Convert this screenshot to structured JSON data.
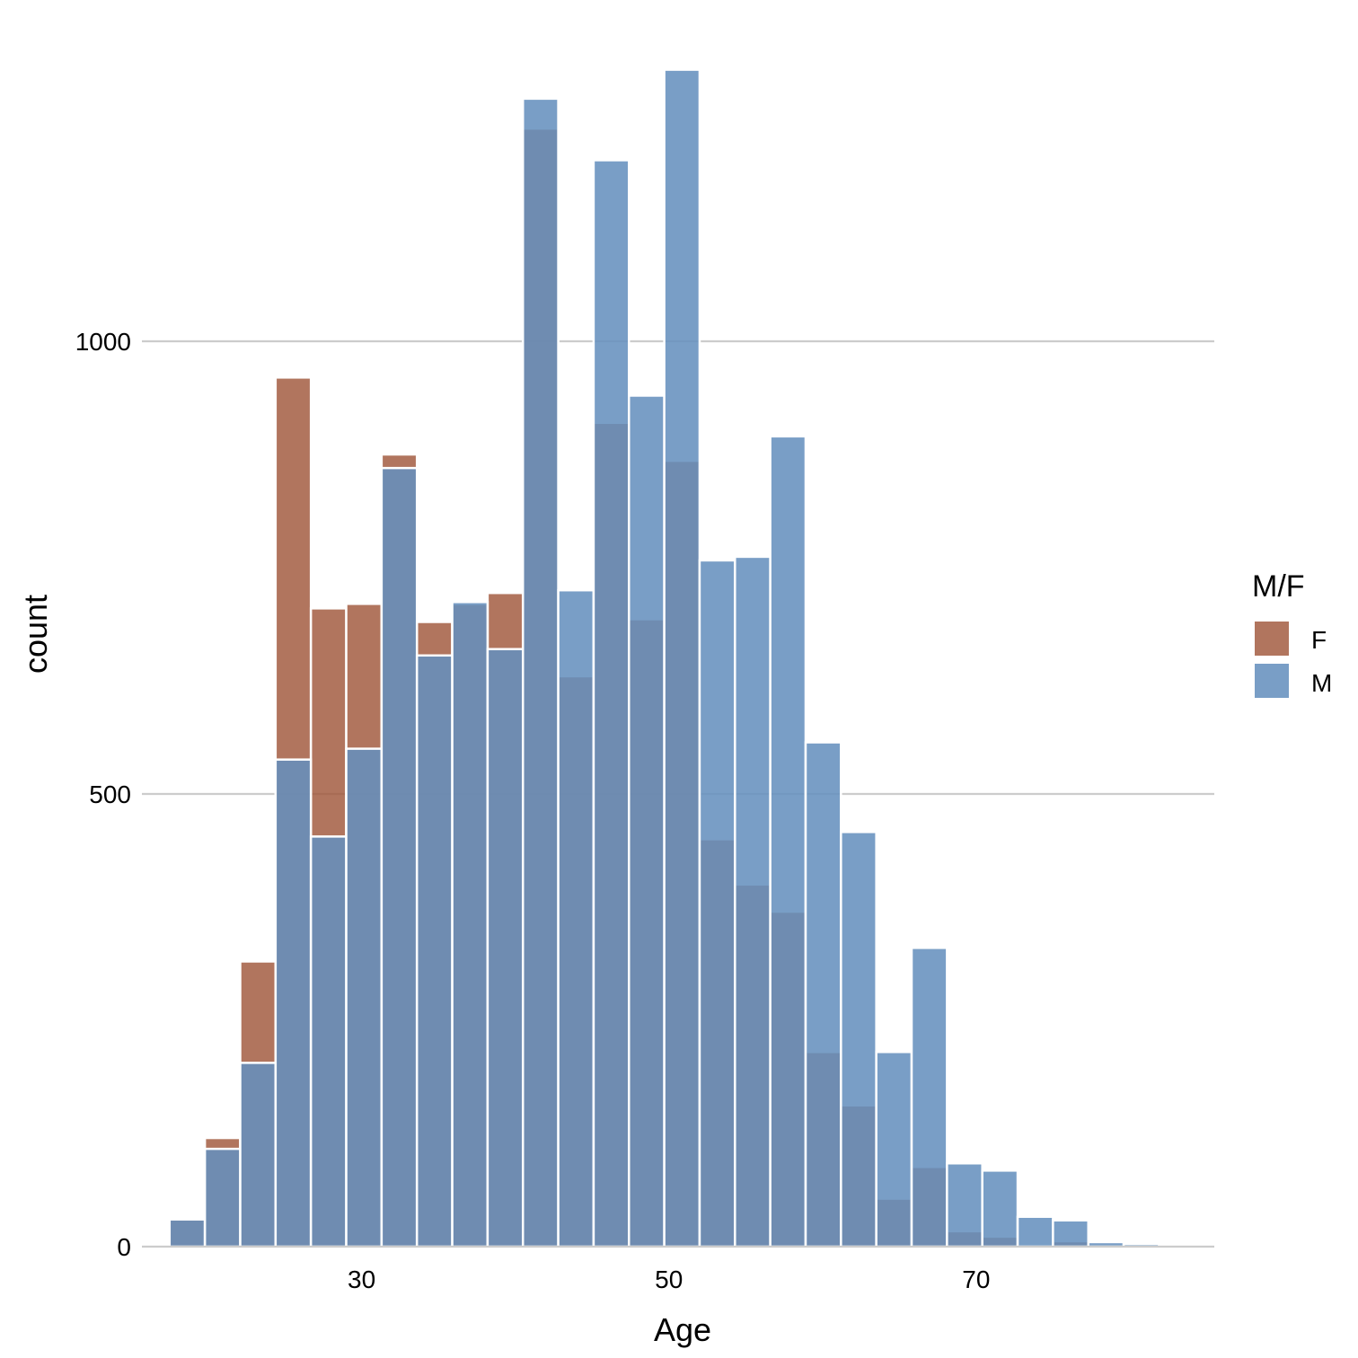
{
  "chart_data": {
    "type": "bar",
    "subtype": "overlapping-histogram",
    "xlabel": "Age",
    "ylabel": "count",
    "x_ticks": [
      30,
      50,
      70
    ],
    "y_ticks": [
      0,
      500,
      1000
    ],
    "xlim": [
      15.7,
      85.5
    ],
    "ylim": [
      0,
      1285
    ],
    "grid": "horizontal",
    "legend": {
      "title": "M/F",
      "position": "right",
      "entries": [
        "F",
        "M"
      ]
    },
    "bin_width": 2.3,
    "bin_left_edges": [
      17.5,
      19.8,
      22.1,
      24.4,
      26.7,
      29.0,
      31.3,
      33.6,
      35.9,
      38.2,
      40.5,
      42.8,
      45.1,
      47.4,
      49.7,
      52.0,
      54.3,
      56.6,
      58.9,
      61.2,
      63.5,
      65.8,
      68.1,
      70.4,
      72.7,
      75.0,
      77.3,
      79.6
    ],
    "series": [
      {
        "name": "F",
        "color": "#a0573a",
        "values": [
          30,
          120,
          315,
          960,
          705,
          710,
          875,
          690,
          710,
          722,
          1235,
          630,
          910,
          693,
          868,
          450,
          400,
          370,
          215,
          156,
          53,
          88,
          17,
          11,
          2,
          6,
          0,
          0
        ]
      },
      {
        "name": "M",
        "color": "#6590be",
        "values": [
          30,
          108,
          203,
          538,
          453,
          550,
          860,
          653,
          712,
          660,
          1268,
          725,
          1200,
          940,
          1300,
          758,
          762,
          895,
          557,
          458,
          215,
          330,
          92,
          84,
          33,
          29,
          5,
          3
        ]
      }
    ]
  }
}
